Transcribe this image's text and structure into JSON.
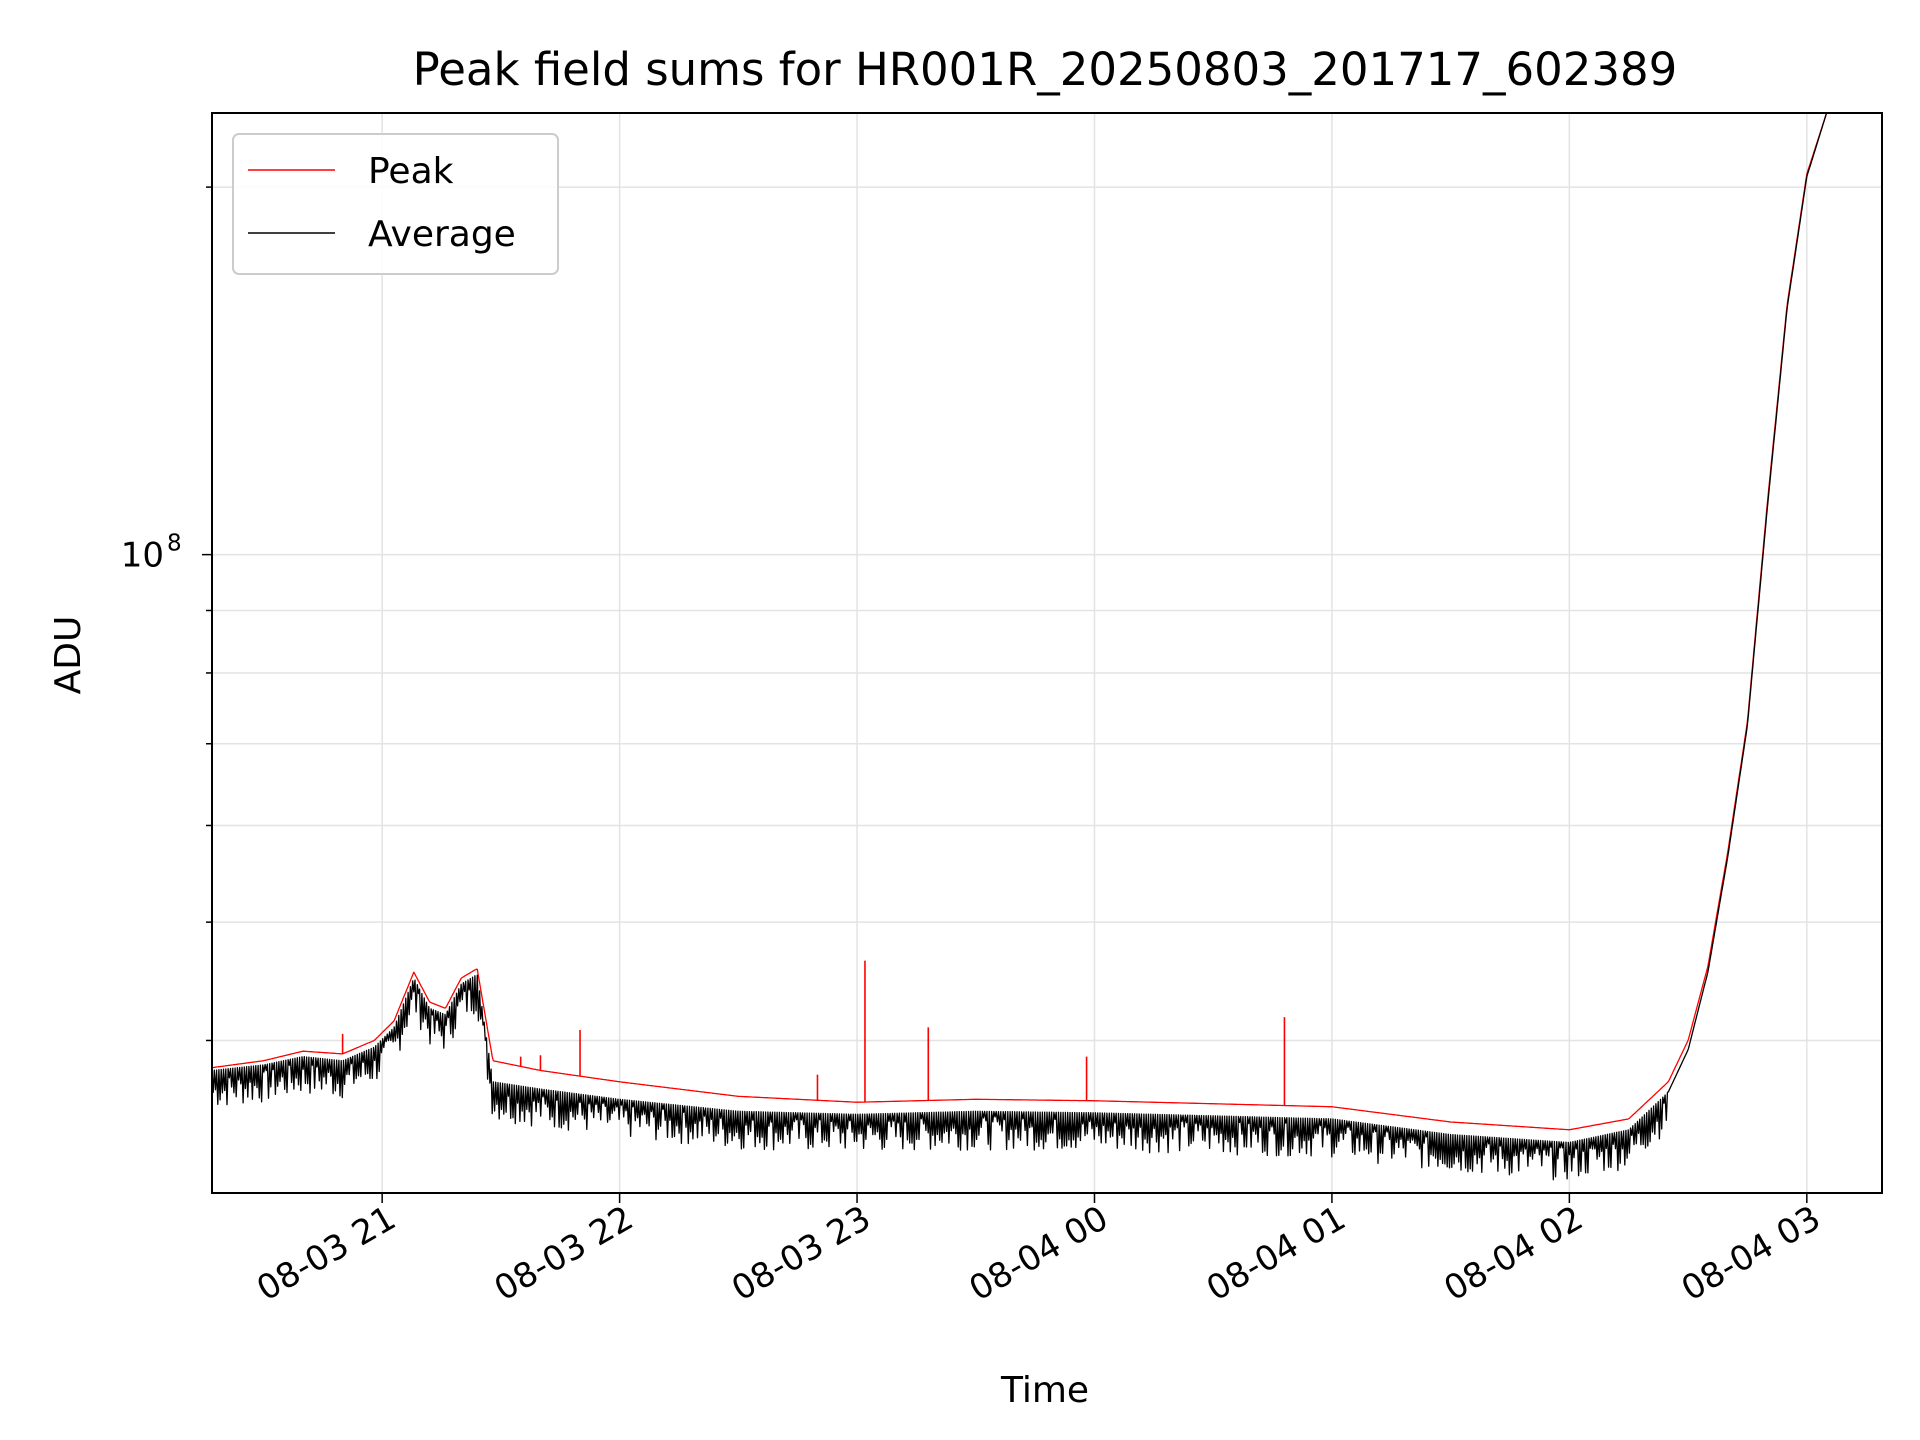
{
  "chart_data": {
    "type": "line",
    "title": "Peak field sums for HR001R_20250803_201717_602389",
    "xlabel": "Time",
    "ylabel": "ADU",
    "yscale": "log",
    "ylim": [
      30000000,
      230000000
    ],
    "xlim": [
      "2025-08-03 20:17",
      "2025-08-04 03:19"
    ],
    "grid": true,
    "legend": "top-left",
    "x_ticks": [
      {
        "t": "2025-08-03 21:00",
        "label": "08-03 21"
      },
      {
        "t": "2025-08-03 22:00",
        "label": "08-03 22"
      },
      {
        "t": "2025-08-03 23:00",
        "label": "08-03 23"
      },
      {
        "t": "2025-08-04 00:00",
        "label": "08-04 00"
      },
      {
        "t": "2025-08-04 01:00",
        "label": "08-04 01"
      },
      {
        "t": "2025-08-04 02:00",
        "label": "08-04 02"
      },
      {
        "t": "2025-08-04 03:00",
        "label": "08-04 03"
      }
    ],
    "y_major_ticks": [
      {
        "value": 100000000,
        "base": "10",
        "exp": "8"
      }
    ],
    "y_minor_ticks": [
      40000000,
      50000000,
      60000000,
      70000000,
      80000000,
      90000000,
      200000000
    ],
    "series": [
      {
        "name": "Peak",
        "color": "#ff0000",
        "points": [
          [
            "2025-08-03 20:17",
            38000000
          ],
          [
            "2025-08-03 20:30",
            38500000
          ],
          [
            "2025-08-03 20:40",
            39200000
          ],
          [
            "2025-08-03 20:50",
            39000000
          ],
          [
            "2025-08-03 20:58",
            40000000
          ],
          [
            "2025-08-03 21:03",
            41500000
          ],
          [
            "2025-08-03 21:08",
            45500000
          ],
          [
            "2025-08-03 21:12",
            43000000
          ],
          [
            "2025-08-03 21:16",
            42500000
          ],
          [
            "2025-08-03 21:20",
            45000000
          ],
          [
            "2025-08-03 21:24",
            45800000
          ],
          [
            "2025-08-03 21:28",
            38500000
          ],
          [
            "2025-08-03 21:40",
            37800000
          ],
          [
            "2025-08-03 22:00",
            37000000
          ],
          [
            "2025-08-03 22:30",
            36000000
          ],
          [
            "2025-08-03 23:00",
            35600000
          ],
          [
            "2025-08-03 23:30",
            35800000
          ],
          [
            "2025-08-04 00:00",
            35700000
          ],
          [
            "2025-08-04 00:30",
            35500000
          ],
          [
            "2025-08-04 01:00",
            35300000
          ],
          [
            "2025-08-04 01:30",
            34300000
          ],
          [
            "2025-08-04 02:00",
            33800000
          ],
          [
            "2025-08-04 02:15",
            34500000
          ],
          [
            "2025-08-04 02:25",
            37000000
          ],
          [
            "2025-08-04 02:30",
            40000000
          ],
          [
            "2025-08-04 02:35",
            46000000
          ],
          [
            "2025-08-04 02:40",
            57000000
          ],
          [
            "2025-08-04 02:45",
            73000000
          ],
          [
            "2025-08-04 02:50",
            110000000
          ],
          [
            "2025-08-04 02:55",
            160000000
          ],
          [
            "2025-08-04 03:00",
            205000000
          ],
          [
            "2025-08-04 03:05",
            230000000
          ]
        ]
      },
      {
        "name": "Average",
        "color": "#000000",
        "points": [
          [
            "2025-08-03 20:17",
            37800000
          ],
          [
            "2025-08-03 20:30",
            38200000
          ],
          [
            "2025-08-03 20:40",
            38800000
          ],
          [
            "2025-08-03 20:50",
            38500000
          ],
          [
            "2025-08-03 20:58",
            39500000
          ],
          [
            "2025-08-03 21:03",
            41000000
          ],
          [
            "2025-08-03 21:08",
            45000000
          ],
          [
            "2025-08-03 21:12",
            42500000
          ],
          [
            "2025-08-03 21:16",
            42000000
          ],
          [
            "2025-08-03 21:20",
            44500000
          ],
          [
            "2025-08-03 21:24",
            45300000
          ],
          [
            "2025-08-03 21:28",
            37000000
          ],
          [
            "2025-08-03 21:40",
            36500000
          ],
          [
            "2025-08-03 22:00",
            35800000
          ],
          [
            "2025-08-03 22:30",
            35000000
          ],
          [
            "2025-08-03 23:00",
            34800000
          ],
          [
            "2025-08-03 23:30",
            35000000
          ],
          [
            "2025-08-04 00:00",
            34900000
          ],
          [
            "2025-08-04 00:30",
            34700000
          ],
          [
            "2025-08-04 01:00",
            34500000
          ],
          [
            "2025-08-04 01:30",
            33500000
          ],
          [
            "2025-08-04 02:00",
            33000000
          ],
          [
            "2025-08-04 02:15",
            33800000
          ],
          [
            "2025-08-04 02:25",
            36300000
          ],
          [
            "2025-08-04 02:30",
            39300000
          ],
          [
            "2025-08-04 02:35",
            45500000
          ],
          [
            "2025-08-04 02:40",
            56500000
          ],
          [
            "2025-08-04 02:45",
            72500000
          ],
          [
            "2025-08-04 02:50",
            109000000
          ],
          [
            "2025-08-04 02:55",
            159000000
          ],
          [
            "2025-08-04 03:00",
            204000000
          ],
          [
            "2025-08-04 03:05",
            230000000
          ]
        ]
      }
    ],
    "peak_spikes": [
      [
        "2025-08-03 20:50",
        40500000
      ],
      [
        "2025-08-03 21:35",
        38800000
      ],
      [
        "2025-08-03 21:40",
        38900000
      ],
      [
        "2025-08-03 21:50",
        40800000
      ],
      [
        "2025-08-03 22:50",
        37500000
      ],
      [
        "2025-08-03 23:02",
        46500000
      ],
      [
        "2025-08-03 23:18",
        41000000
      ],
      [
        "2025-08-03 23:58",
        38800000
      ],
      [
        "2025-08-04 00:48",
        41800000
      ]
    ]
  }
}
